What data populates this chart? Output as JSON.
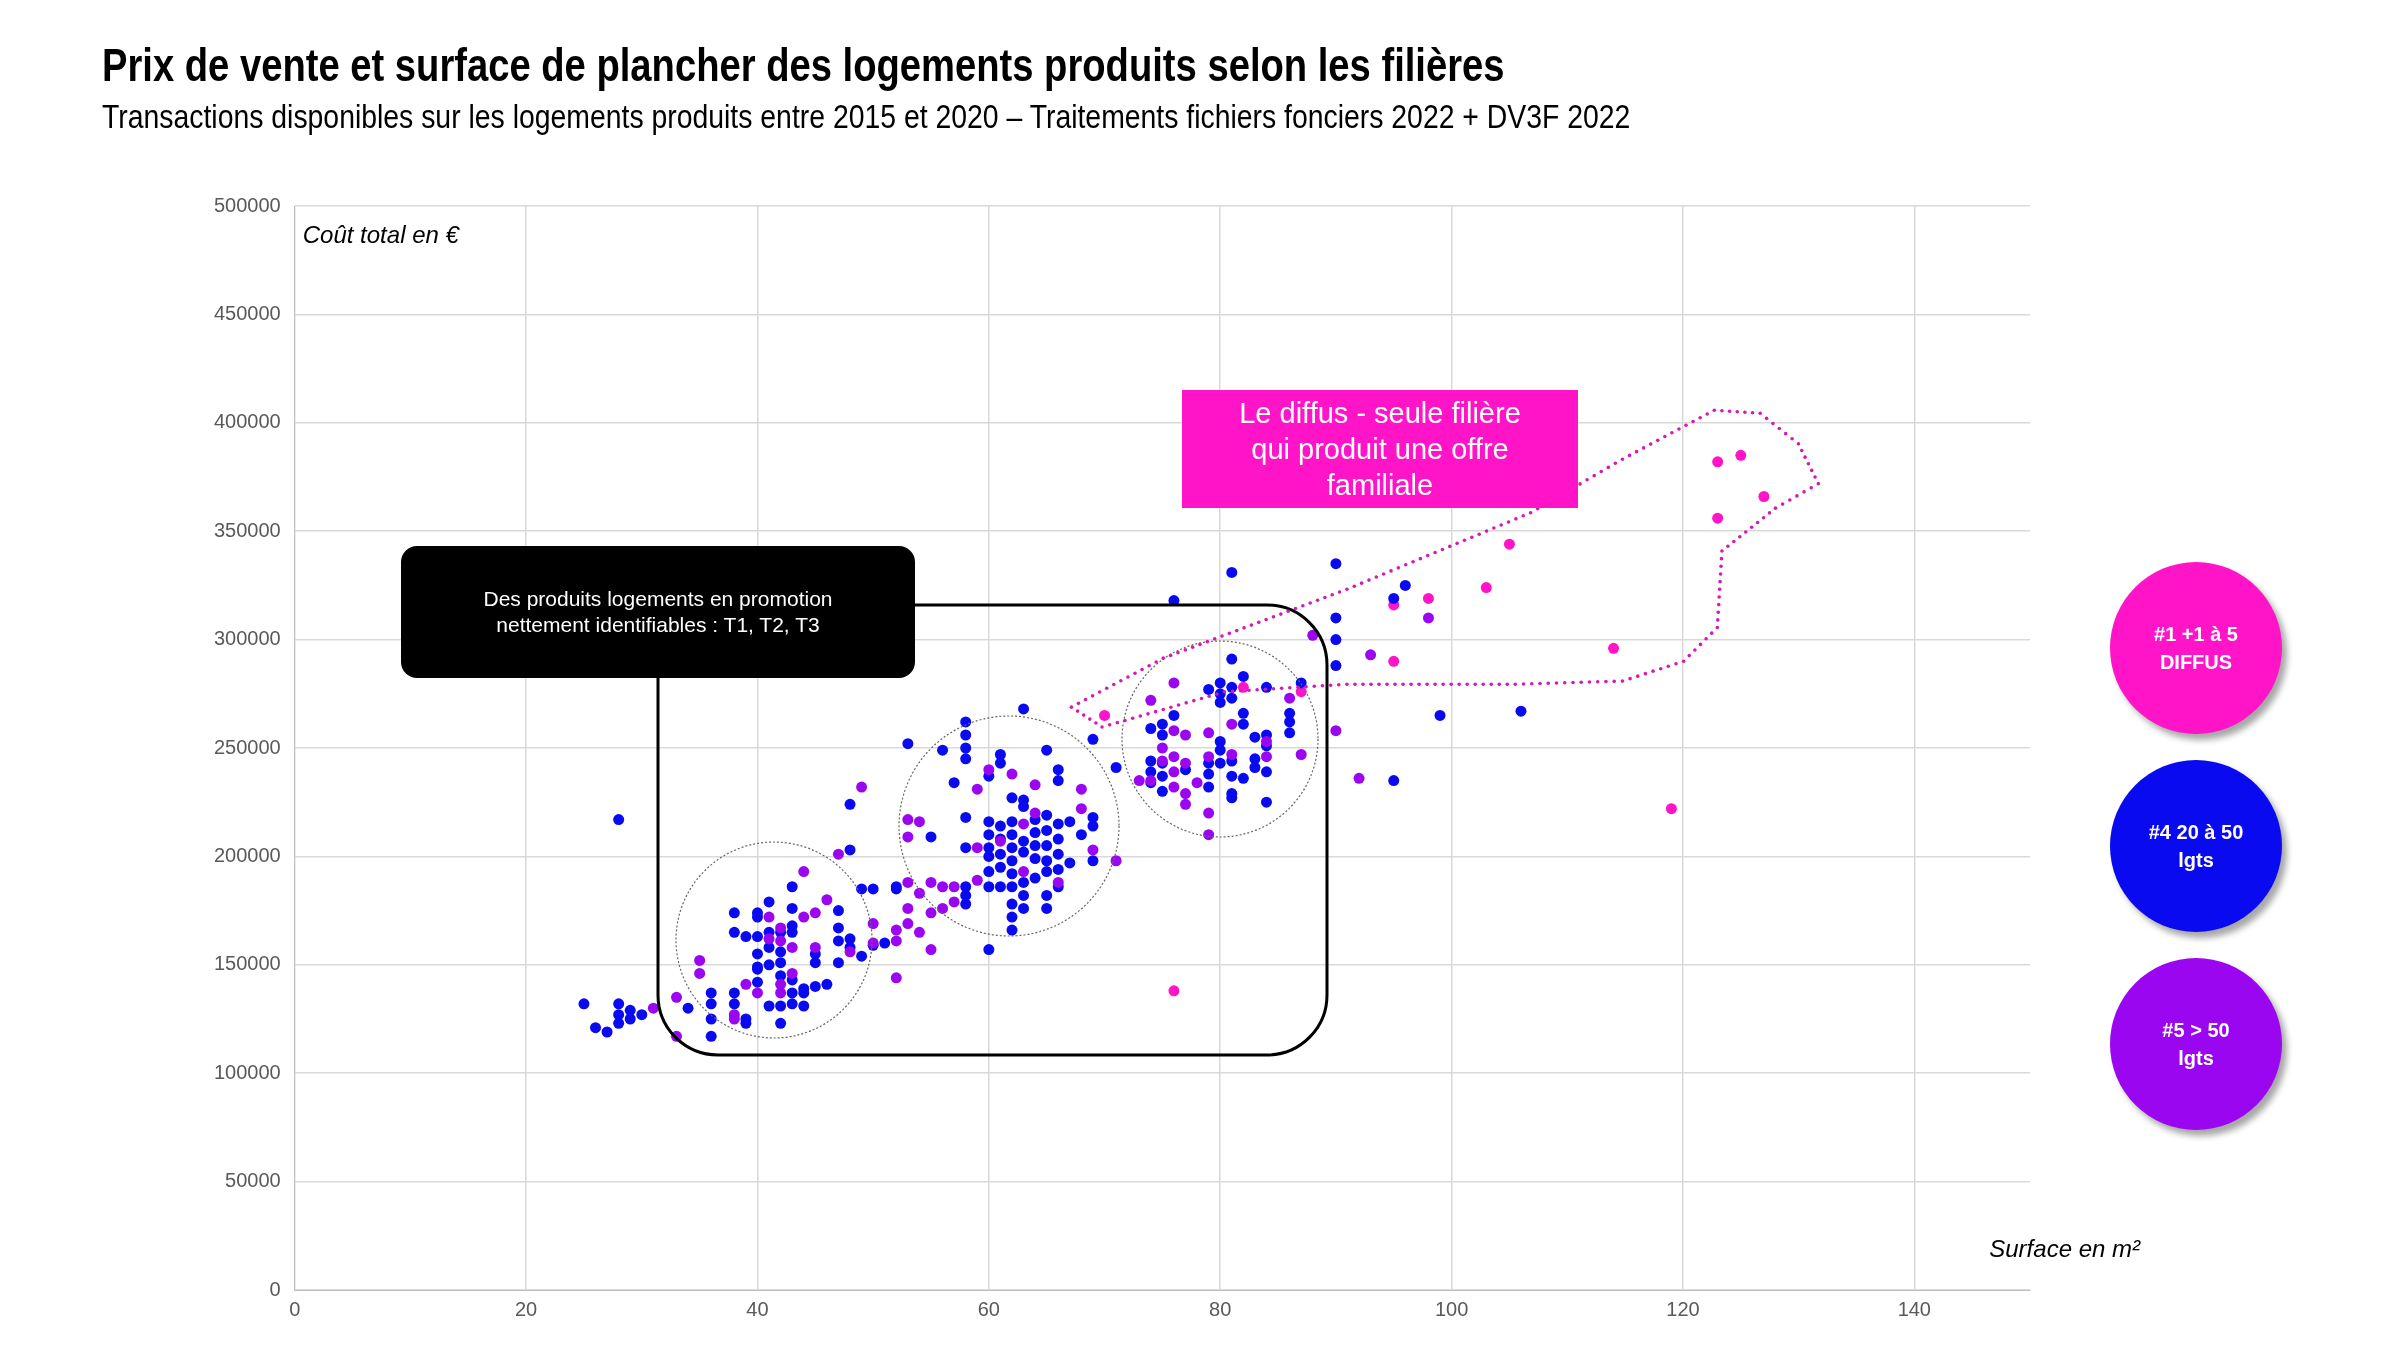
{
  "chart_data": {
    "type": "scatter",
    "title": "Prix de vente et surface de plancher des logements produits selon les filières",
    "subtitle": "Transactions disponibles sur les logements produits entre 2015 et 2020 – Traitements fichiers fonciers 2022 + DV3F 2022",
    "xlabel": "Surface en m²",
    "ylabel": "Coût total en €",
    "xlim": [
      0,
      150
    ],
    "xticks": [
      0,
      20,
      40,
      60,
      80,
      100,
      120,
      140
    ],
    "ylim": [
      0,
      500000
    ],
    "yticks": [
      0,
      50000,
      100000,
      150000,
      200000,
      250000,
      300000,
      350000,
      400000,
      450000,
      500000
    ],
    "grid": true,
    "legend": "right",
    "marker": "circle",
    "annotations": [
      "Des produits logements en promotion nettement identifiables : T1, T2, T3",
      "Le diffus - seule filière qui produit une offre familiale"
    ],
    "series": [
      {
        "name": "#1 +1 à 5 DIFFUS",
        "color": "#ff14c8",
        "x": [
          123,
          125,
          127,
          123,
          105,
          103,
          98,
          95,
          95,
          114,
          119,
          70,
          76,
          82,
          87
        ],
        "values": [
          382000,
          385000,
          366000,
          356000,
          344000,
          324000,
          319000,
          316000,
          290000,
          296000,
          222000,
          265000,
          138000,
          278000,
          276000
        ]
      },
      {
        "name": "#4 20 à 50 lgts",
        "color": "#0a0af0",
        "x": [
          25,
          26,
          27,
          28,
          28,
          28,
          29,
          29,
          30,
          28,
          34,
          36,
          36,
          36,
          36,
          38,
          38,
          39,
          39,
          38,
          38,
          39,
          40,
          40,
          40,
          40,
          40,
          40,
          40,
          41,
          41,
          41,
          41,
          41,
          42,
          42,
          42,
          42,
          42,
          42,
          43,
          43,
          43,
          43,
          43,
          43,
          43,
          44,
          44,
          44,
          45,
          45,
          45,
          46,
          47,
          47,
          47,
          47,
          48,
          48,
          48,
          48,
          49,
          49,
          50,
          50,
          51,
          52,
          58,
          58,
          58,
          58,
          53,
          56,
          63,
          65,
          61,
          61,
          57,
          60,
          66,
          66,
          69,
          71,
          58,
          55,
          58,
          62,
          63,
          63,
          60,
          60,
          60,
          60,
          60,
          60,
          61,
          61,
          61,
          61,
          61,
          62,
          62,
          62,
          62,
          62,
          62,
          62,
          62,
          62,
          63,
          63,
          63,
          63,
          63,
          64,
          64,
          64,
          64,
          64,
          65,
          65,
          65,
          65,
          65,
          65,
          65,
          66,
          66,
          66,
          66,
          66,
          67,
          67,
          68,
          69,
          69,
          69,
          52,
          60,
          58,
          58,
          58,
          81,
          76,
          90,
          90,
          90,
          90,
          81,
          82,
          79,
          80,
          80,
          80,
          81,
          81,
          84,
          87,
          86,
          86,
          86,
          82,
          82,
          76,
          74,
          75,
          75,
          80,
          80,
          80,
          79,
          79,
          79,
          81,
          81,
          81,
          81,
          82,
          83,
          83,
          83,
          84,
          84,
          84,
          84,
          74,
          74,
          74,
          75,
          75,
          75,
          77,
          96,
          95,
          99,
          106,
          95
        ],
        "values": [
          132000,
          121000,
          119000,
          132000,
          127000,
          123000,
          129000,
          125000,
          127000,
          217000,
          130000,
          137000,
          132000,
          125000,
          117000,
          137000,
          132000,
          125000,
          123000,
          174000,
          165000,
          163000,
          174000,
          172000,
          163000,
          155000,
          149000,
          148000,
          142000,
          179000,
          165000,
          158000,
          150000,
          131000,
          165000,
          156000,
          151000,
          145000,
          131000,
          123000,
          186000,
          176000,
          168000,
          165000,
          143000,
          137000,
          132000,
          139000,
          137000,
          131000,
          155000,
          151000,
          140000,
          141000,
          175000,
          167000,
          161000,
          151000,
          224000,
          203000,
          162000,
          158000,
          185000,
          154000,
          185000,
          159000,
          160000,
          185000,
          262000,
          256000,
          250000,
          245000,
          252000,
          249000,
          268000,
          249000,
          247000,
          243000,
          234000,
          237000,
          240000,
          235000,
          254000,
          241000,
          218000,
          209000,
          204000,
          227000,
          226000,
          223000,
          216000,
          210000,
          204000,
          200000,
          193000,
          186000,
          214000,
          208000,
          201000,
          195000,
          186000,
          216000,
          210000,
          204000,
          198000,
          192000,
          186000,
          178000,
          172000,
          166000,
          207000,
          202000,
          188000,
          182000,
          176000,
          217000,
          211000,
          205000,
          199000,
          190000,
          219000,
          212000,
          205000,
          198000,
          193000,
          182000,
          176000,
          215000,
          208000,
          201000,
          194000,
          186000,
          216000,
          197000,
          210000,
          218000,
          214000,
          198000,
          186000,
          157000,
          186000,
          182000,
          178000,
          331000,
          318000,
          335000,
          310000,
          300000,
          288000,
          291000,
          283000,
          277000,
          280000,
          275000,
          271000,
          278000,
          273000,
          278000,
          280000,
          266000,
          262000,
          257000,
          266000,
          261000,
          265000,
          259000,
          261000,
          256000,
          253000,
          249000,
          243000,
          243000,
          238000,
          232000,
          244000,
          237000,
          229000,
          227000,
          236000,
          255000,
          245000,
          241000,
          256000,
          251000,
          239000,
          225000,
          244000,
          239000,
          234000,
          243000,
          237000,
          230000,
          240000,
          325000,
          319000,
          265000,
          267000,
          235000
        ]
      },
      {
        "name": "#5 > 50 lgts",
        "color": "#9a06f0",
        "x": [
          88,
          93,
          98,
          90,
          92,
          87,
          49,
          47,
          44,
          46,
          45,
          44,
          41,
          42,
          42,
          43,
          45,
          50,
          50,
          52,
          52,
          48,
          35,
          35,
          33,
          31,
          33,
          38,
          38,
          39,
          40,
          42,
          42,
          41,
          43,
          53,
          54,
          53,
          53,
          55,
          56,
          54,
          53,
          53,
          52,
          54,
          55,
          56,
          55,
          57,
          57,
          59,
          60,
          62,
          64,
          59,
          59,
          63,
          63,
          64,
          68,
          68,
          69,
          66,
          61,
          76,
          74,
          86,
          76,
          77,
          77,
          79,
          79,
          81,
          81,
          76,
          76,
          76,
          75,
          75,
          73,
          74,
          78,
          77,
          77,
          84,
          84,
          71,
          79,
          79
        ],
        "values": [
          302000,
          293000,
          310000,
          258000,
          236000,
          247000,
          232000,
          201000,
          193000,
          180000,
          174000,
          172000,
          172000,
          167000,
          161000,
          158000,
          158000,
          169000,
          160000,
          166000,
          144000,
          156000,
          152000,
          146000,
          135000,
          130000,
          117000,
          127000,
          125000,
          141000,
          137000,
          141000,
          137000,
          162000,
          146000,
          217000,
          216000,
          209000,
          188000,
          188000,
          186000,
          183000,
          176000,
          169000,
          161000,
          165000,
          174000,
          176000,
          157000,
          186000,
          179000,
          231000,
          240000,
          238000,
          233000,
          204000,
          189000,
          215000,
          193000,
          220000,
          231000,
          222000,
          203000,
          188000,
          207000,
          280000,
          272000,
          273000,
          258000,
          256000,
          243000,
          257000,
          246000,
          261000,
          247000,
          246000,
          239000,
          232000,
          250000,
          244000,
          235000,
          235000,
          234000,
          229000,
          224000,
          253000,
          246000,
          198000,
          210000,
          220000
        ]
      }
    ]
  }
}
